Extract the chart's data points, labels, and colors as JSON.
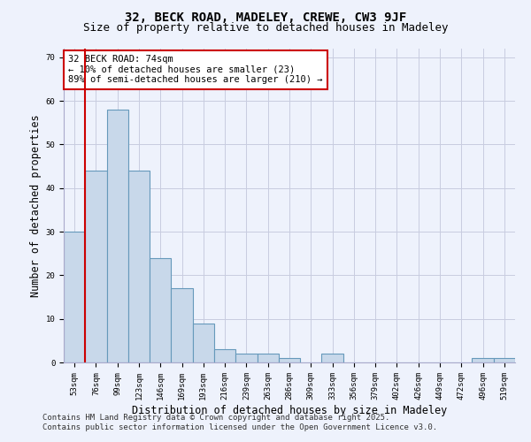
{
  "title_line1": "32, BECK ROAD, MADELEY, CREWE, CW3 9JF",
  "title_line2": "Size of property relative to detached houses in Madeley",
  "xlabel": "Distribution of detached houses by size in Madeley",
  "ylabel": "Number of detached properties",
  "categories": [
    "53sqm",
    "76sqm",
    "99sqm",
    "123sqm",
    "146sqm",
    "169sqm",
    "193sqm",
    "216sqm",
    "239sqm",
    "263sqm",
    "286sqm",
    "309sqm",
    "333sqm",
    "356sqm",
    "379sqm",
    "402sqm",
    "426sqm",
    "449sqm",
    "472sqm",
    "496sqm",
    "519sqm"
  ],
  "values": [
    30,
    44,
    58,
    44,
    24,
    17,
    9,
    3,
    2,
    2,
    1,
    0,
    2,
    0,
    0,
    0,
    0,
    0,
    0,
    1,
    1
  ],
  "bar_color": "#c8d8ea",
  "bar_edge_color": "#6699bb",
  "vline_color": "#cc0000",
  "annotation_text": "32 BECK ROAD: 74sqm\n← 10% of detached houses are smaller (23)\n89% of semi-detached houses are larger (210) →",
  "annotation_box_color": "#ffffff",
  "annotation_box_edge": "#cc0000",
  "ylim": [
    0,
    72
  ],
  "yticks": [
    0,
    10,
    20,
    30,
    40,
    50,
    60,
    70
  ],
  "background_color": "#eef2fc",
  "grid_color": "#c8cce0",
  "footer_line1": "Contains HM Land Registry data © Crown copyright and database right 2025.",
  "footer_line2": "Contains public sector information licensed under the Open Government Licence v3.0.",
  "title_fontsize": 10,
  "subtitle_fontsize": 9,
  "axis_label_fontsize": 8.5,
  "tick_fontsize": 6.5,
  "annotation_fontsize": 7.5,
  "footer_fontsize": 6.5
}
